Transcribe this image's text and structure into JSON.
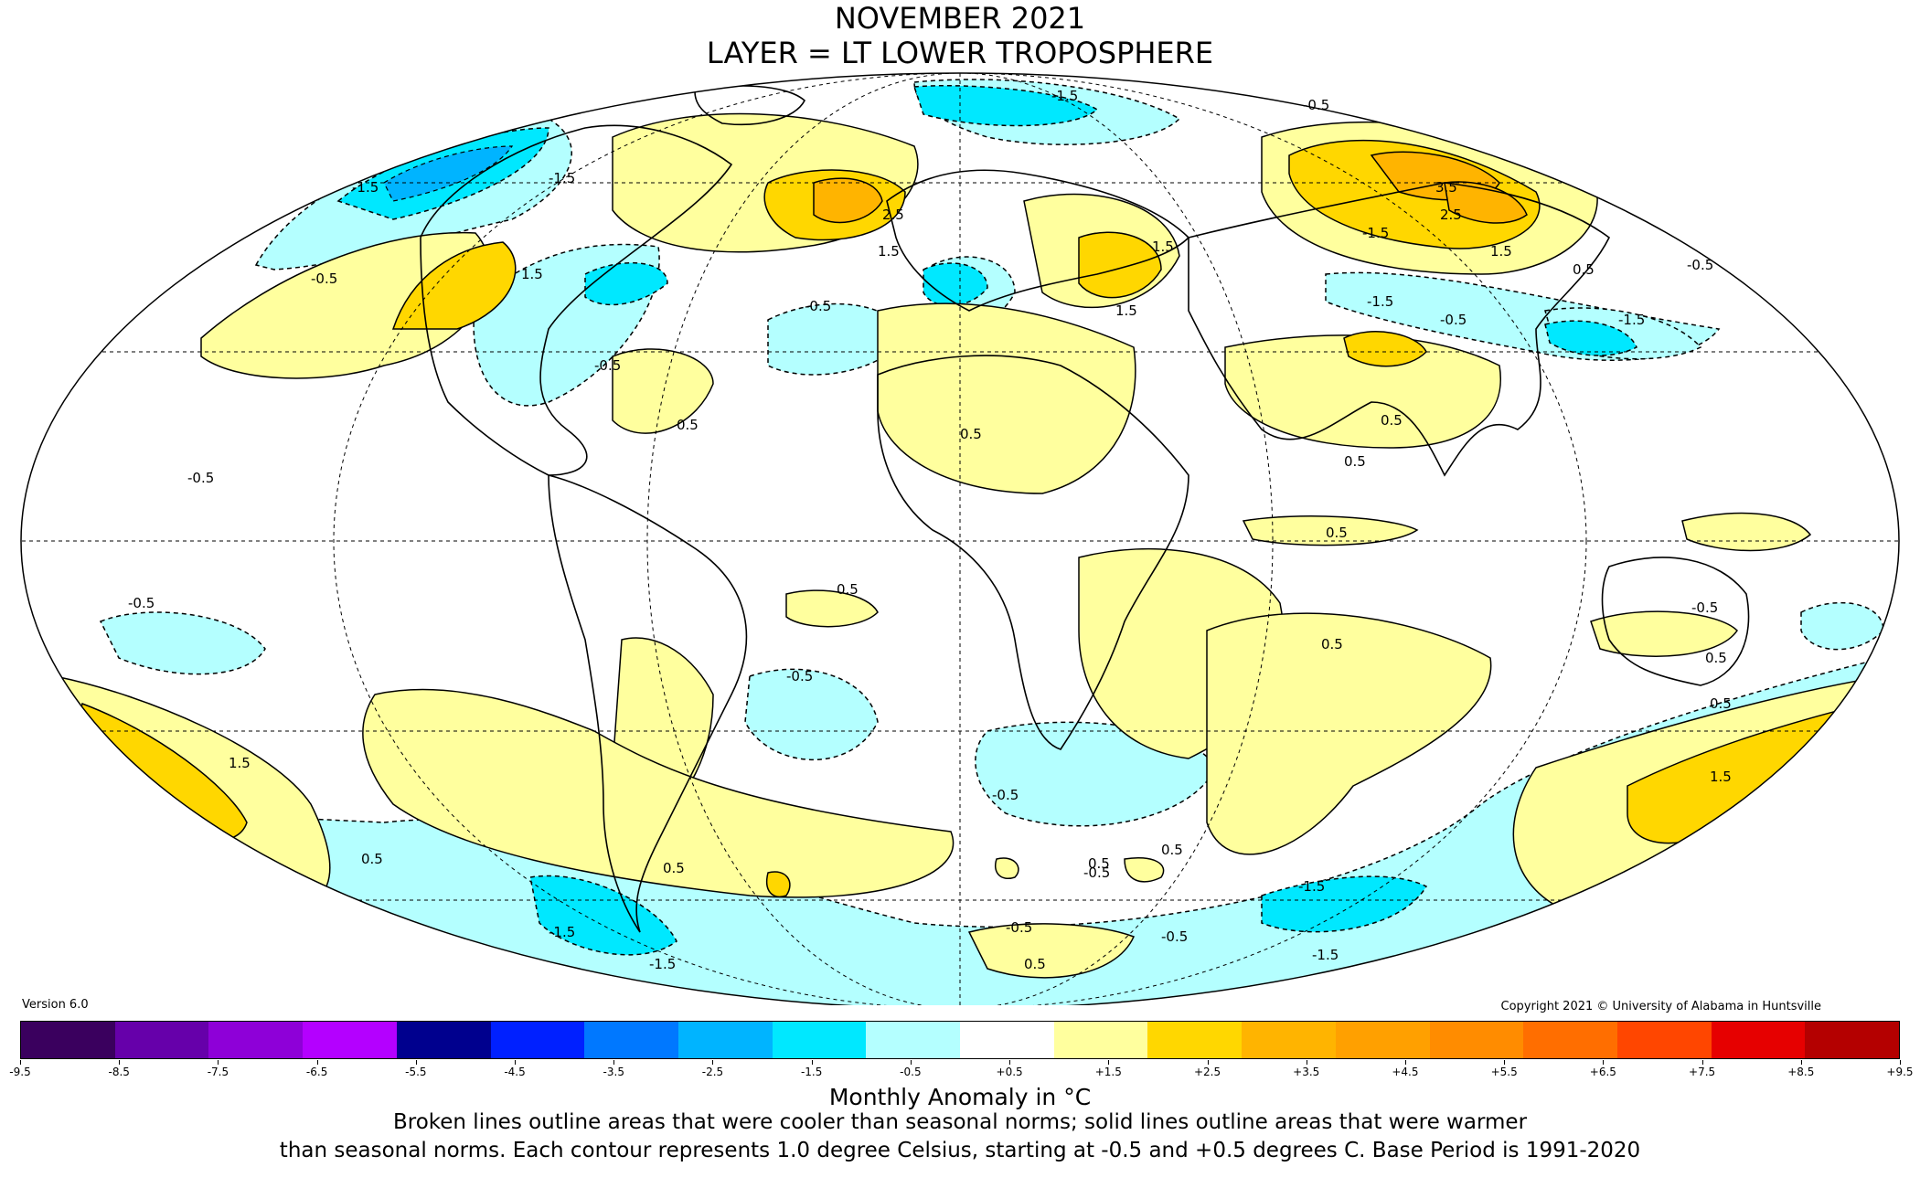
{
  "title": "NOVEMBER 2021",
  "subtitle": "LAYER = LT LOWER TROPOSPHERE",
  "version": "Version 6.0",
  "copyright": "Copyright 2021 © University of Alabama in Huntsville",
  "colorbar": {
    "ticks": [
      "-9.5",
      "-8.5",
      "-7.5",
      "-6.5",
      "-5.5",
      "-4.5",
      "-3.5",
      "-2.5",
      "-1.5",
      "-0.5",
      "+0.5",
      "+1.5",
      "+2.5",
      "+3.5",
      "+4.5",
      "+5.5",
      "+6.5",
      "+7.5",
      "+8.5",
      "+9.5"
    ],
    "colors": [
      "#3a005e",
      "#6600aa",
      "#8e00d8",
      "#b400ff",
      "#00008e",
      "#0020ff",
      "#0078ff",
      "#00b4ff",
      "#00e8ff",
      "#b4ffff",
      "#ffffff",
      "#ffff9e",
      "#ffd700",
      "#ffb400",
      "#ffa000",
      "#ff8c00",
      "#ff6e00",
      "#ff4600",
      "#e60000",
      "#b40000"
    ],
    "unit_label": "Monthly Anomaly in °C"
  },
  "caption_line1": "Broken lines outline areas that were cooler than seasonal norms; solid lines outline areas that were warmer",
  "caption_line2": "than seasonal norms. Each contour represents 1.0 degree Celsius, starting at -0.5 and +0.5 degrees C. Base Period is 1991-2020",
  "contour_labels": [
    "-0.5",
    "-0.5",
    "-0.5",
    "-0.5",
    "-0.5",
    "-0.5",
    "-0.5",
    "-0.5",
    "-0.5",
    "-0.5",
    "-0.5",
    "-0.5",
    "-0.5",
    "-0.5",
    "-1.5",
    "-1.5",
    "-1.5",
    "-1.5",
    "-1.5",
    "-1.5",
    "-1.5",
    "-1.5",
    "-1.5",
    "-1.5",
    "0.5",
    "0.5",
    "0.5",
    "0.5",
    "0.5",
    "0.5",
    "0.5",
    "0.5",
    "0.5",
    "0.5",
    "0.5",
    "0.5",
    "0.5",
    "0.5",
    "0.5",
    "1.5",
    "1.5",
    "1.5",
    "1.5",
    "1.5",
    "1.5",
    "1.5",
    "2.5",
    "2.5",
    "3.5"
  ]
}
